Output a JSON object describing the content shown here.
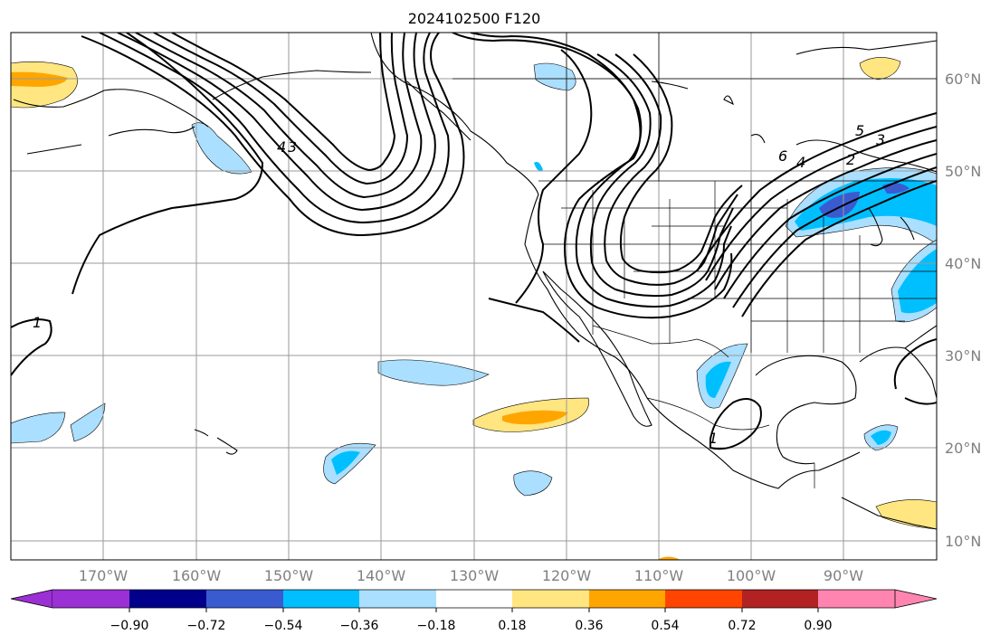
{
  "title": "2024102500 F120",
  "lat_labels": [
    "60°N",
    "50°N",
    "40°N",
    "30°N",
    "20°N",
    "10°N"
  ],
  "lon_labels": [
    "170°W",
    "160°W",
    "150°W",
    "140°W",
    "130°W",
    "120°W",
    "110°W",
    "100°W",
    "90°W"
  ],
  "colorbar": {
    "ticks": [
      "−0.90",
      "−0.72",
      "−0.54",
      "−0.36",
      "−0.18",
      "0.18",
      "0.36",
      "0.54",
      "0.72",
      "0.90"
    ],
    "colors": [
      "#9b30d4",
      "#00008b",
      "#3a5bd0",
      "#00bfff",
      "#aadfff",
      "#ffffff",
      "#ffe680",
      "#ffa500",
      "#ff4500",
      "#b22222",
      "#ff85b0"
    ]
  },
  "contour_labels": [
    "1",
    "3",
    "4",
    "6",
    "5",
    "3",
    "2",
    "4",
    "1"
  ],
  "colors": {
    "grid": "#9a9a9a",
    "axis_text": "#808080",
    "frame": "#000000"
  }
}
